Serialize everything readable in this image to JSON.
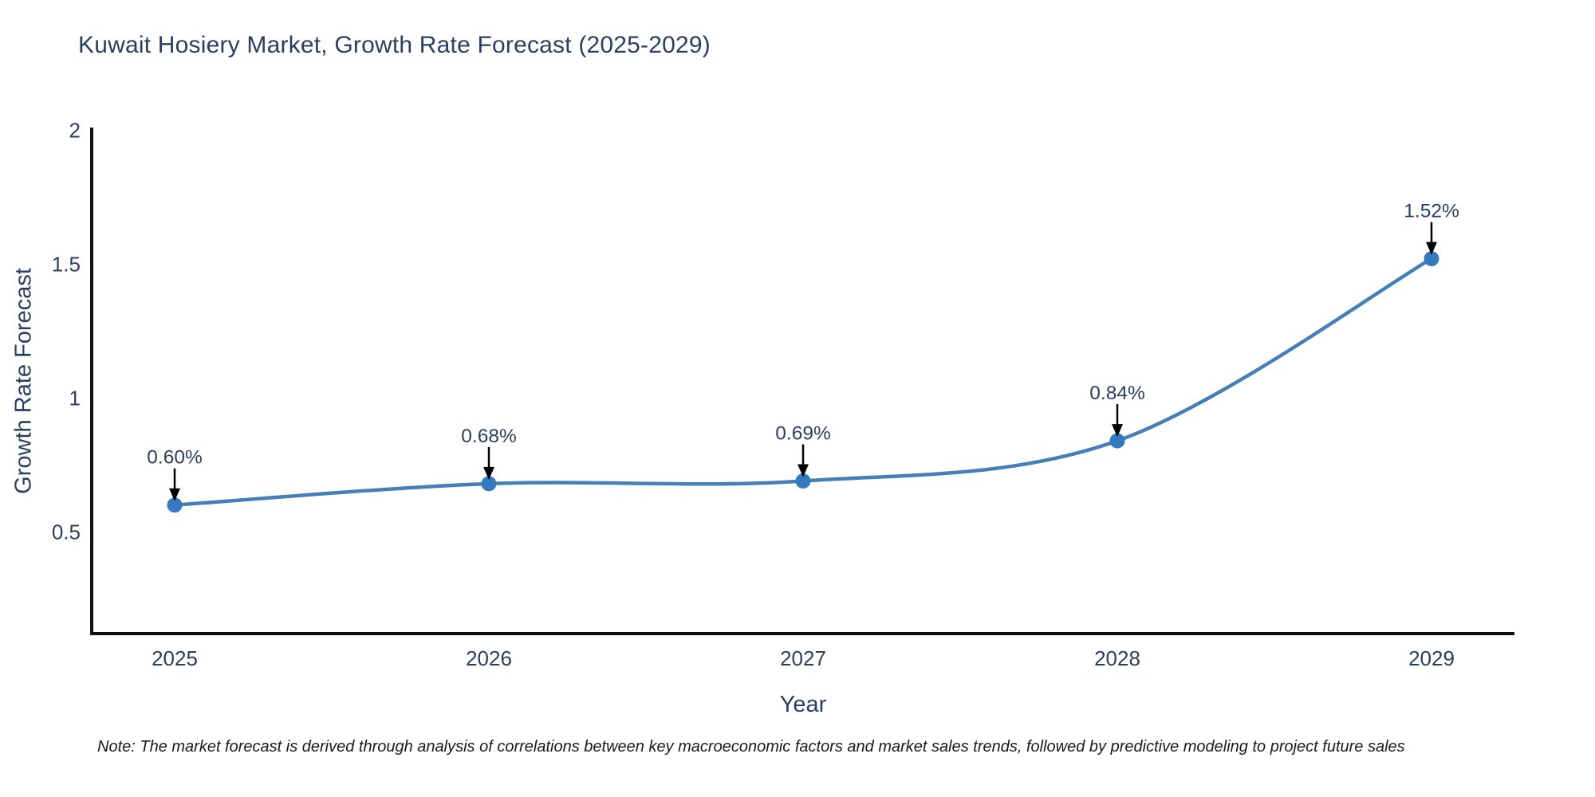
{
  "note": "Note: The market forecast is derived through analysis of correlations between key macroeconomic factors and market sales trends, followed by predictive modeling to project future sales",
  "chart_data": {
    "type": "line",
    "title": "Kuwait Hosiery Market, Growth Rate Forecast (2025-2029)",
    "xlabel": "Year",
    "ylabel": "Growth Rate Forecast",
    "categories": [
      "2025",
      "2026",
      "2027",
      "2028",
      "2029"
    ],
    "values": [
      0.6,
      0.68,
      0.69,
      0.84,
      1.52
    ],
    "point_labels": [
      "0.60%",
      "0.68%",
      "0.69%",
      "0.84%",
      "1.52%"
    ],
    "yticks": [
      "2",
      "1.5",
      "1",
      "0.5"
    ],
    "ytick_values": [
      2,
      1.5,
      1,
      0.5
    ],
    "ylim": [
      0.12,
      2.01
    ],
    "grid": false,
    "line_shape": "spline",
    "legend": "none",
    "colors": {
      "line": "#407cb8",
      "line_stroke": "#4480b7",
      "marker": "#357abf",
      "text": "#2a3f5f",
      "axis": "#111111",
      "arrow": "#000000",
      "note": "#1a1a1a",
      "background": "#ffffff"
    }
  }
}
